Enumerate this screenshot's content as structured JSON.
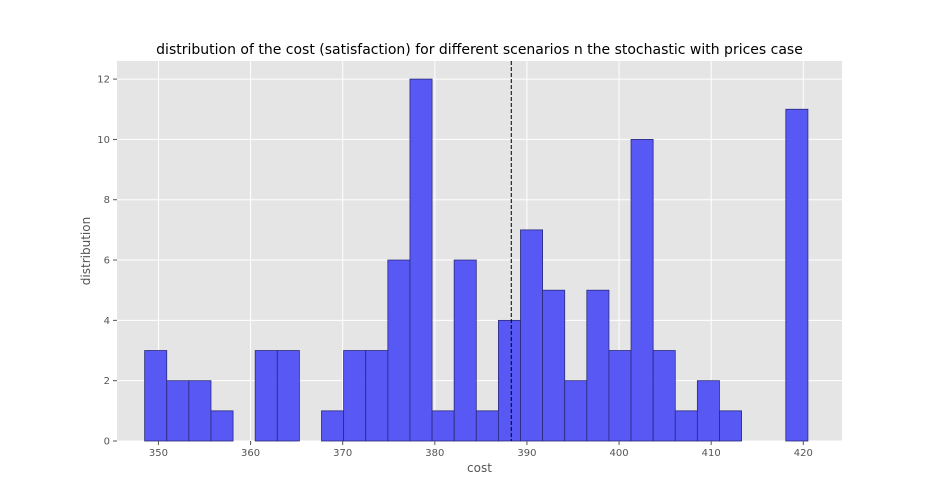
{
  "chart_data": {
    "type": "bar",
    "title": "distribution of the cost (satisfaction) for different scenarios n the stochastic with prices case",
    "xlabel": "cost",
    "ylabel": "distribution",
    "xlim": [
      345.5,
      424.2
    ],
    "ylim": [
      0,
      12.6
    ],
    "x_ticks": [
      350,
      360,
      370,
      380,
      390,
      400,
      410,
      420
    ],
    "y_ticks": [
      0,
      2,
      4,
      6,
      8,
      10,
      12
    ],
    "bin_edges": [
      348.5,
      350.9,
      353.3,
      355.7,
      358.1,
      360.5,
      362.9,
      365.3,
      367.7,
      370.1,
      372.5,
      374.9,
      377.3,
      379.7,
      382.1,
      384.5,
      386.9,
      389.3,
      391.7,
      394.1,
      396.5,
      398.9,
      401.3,
      403.7,
      406.1,
      408.5,
      410.9,
      413.3,
      415.7,
      418.1,
      420.5
    ],
    "values": [
      3,
      2,
      2,
      1,
      0,
      3,
      3,
      0,
      1,
      3,
      3,
      6,
      12,
      1,
      6,
      1,
      4,
      7,
      5,
      2,
      5,
      3,
      10,
      3,
      1,
      2,
      1,
      0,
      0,
      11
    ],
    "mean_line_x": 388.3,
    "grid": true,
    "colors": {
      "bar_fill": "#5050f5",
      "bar_edge": "#2a2a7a",
      "plot_background": "#e5e5e5",
      "grid": "#ffffff",
      "mean_line": "#000000"
    }
  }
}
